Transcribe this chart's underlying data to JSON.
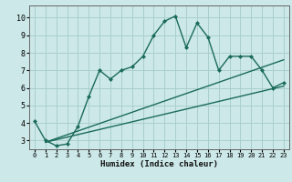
{
  "xlabel": "Humidex (Indice chaleur)",
  "bg_color": "#cce8e8",
  "grid_color": "#aacece",
  "line_color": "#1a6b5a",
  "xlim": [
    -0.5,
    23.5
  ],
  "ylim": [
    2.5,
    10.7
  ],
  "xticks": [
    0,
    1,
    2,
    3,
    4,
    5,
    6,
    7,
    8,
    9,
    10,
    11,
    12,
    13,
    14,
    15,
    16,
    17,
    18,
    19,
    20,
    21,
    22,
    23
  ],
  "yticks": [
    3,
    4,
    5,
    6,
    7,
    8,
    9,
    10
  ],
  "line1_x": [
    0,
    1,
    2,
    3,
    4,
    5,
    6,
    7,
    8,
    9,
    10,
    11,
    12,
    13,
    14,
    15,
    16,
    17,
    18,
    19,
    20,
    21,
    22,
    23
  ],
  "line1_y": [
    4.1,
    3.0,
    2.7,
    2.8,
    3.8,
    5.5,
    7.0,
    6.5,
    7.0,
    7.2,
    7.8,
    9.0,
    9.8,
    10.1,
    8.3,
    9.7,
    8.9,
    7.0,
    7.8,
    7.8,
    7.8,
    7.0,
    6.0,
    6.3
  ],
  "line2_x": [
    1,
    23
  ],
  "line2_y": [
    2.9,
    6.1
  ],
  "line3_x": [
    1,
    23
  ],
  "line3_y": [
    2.9,
    7.6
  ]
}
